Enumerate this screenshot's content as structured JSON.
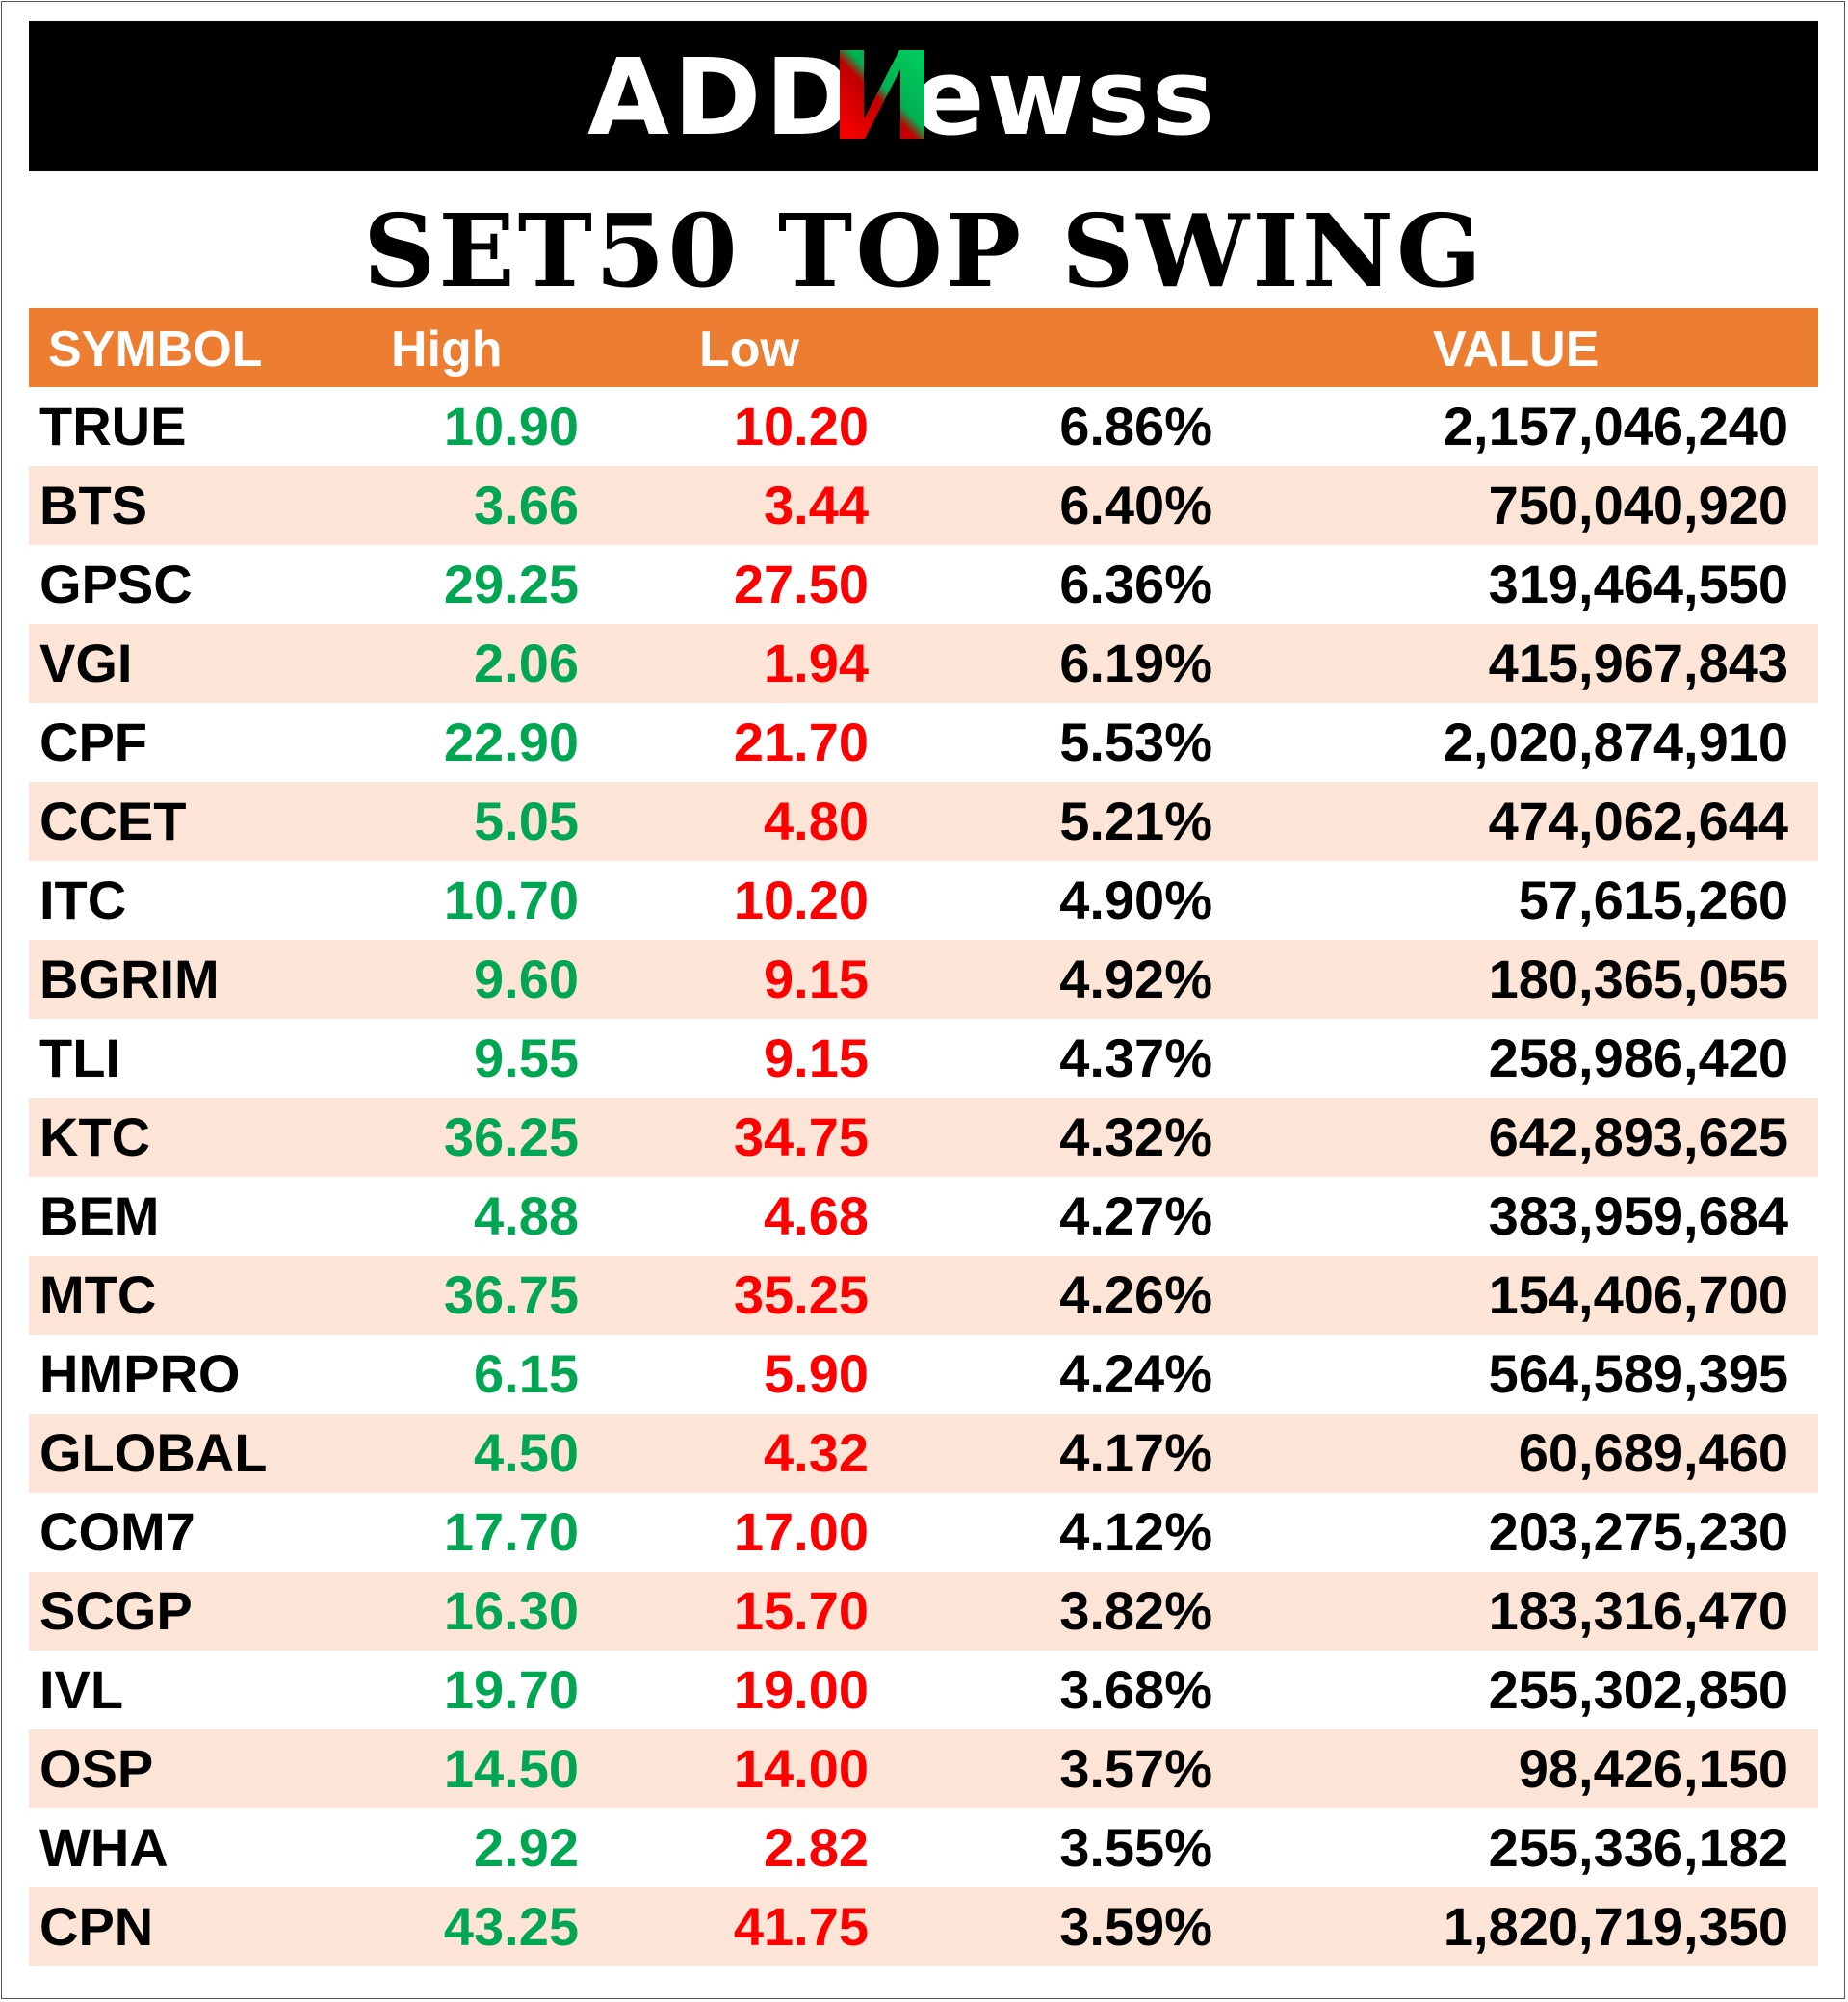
{
  "logo": {
    "text": "ADDNewss",
    "colors": {
      "background": "#000000",
      "letters": "#ffffff",
      "accent_red": "#FF0000",
      "accent_green": "#00B050"
    }
  },
  "title": "SET50 TOP SWING",
  "table": {
    "headers": {
      "symbol": "SYMBOL",
      "high": "High",
      "low": "Low",
      "pct": "",
      "value": "VALUE"
    },
    "colors": {
      "header_bg": "#ED7D31",
      "alt_row_bg": "#FCE4D6",
      "high": "#00A651",
      "low": "#FF0000"
    },
    "rows": [
      {
        "symbol": "TRUE",
        "high": "10.90",
        "low": "10.20",
        "pct": "6.86%",
        "value": "2,157,046,240"
      },
      {
        "symbol": "BTS",
        "high": "3.66",
        "low": "3.44",
        "pct": "6.40%",
        "value": "750,040,920"
      },
      {
        "symbol": "GPSC",
        "high": "29.25",
        "low": "27.50",
        "pct": "6.36%",
        "value": "319,464,550"
      },
      {
        "symbol": "VGI",
        "high": "2.06",
        "low": "1.94",
        "pct": "6.19%",
        "value": "415,967,843"
      },
      {
        "symbol": "CPF",
        "high": "22.90",
        "low": "21.70",
        "pct": "5.53%",
        "value": "2,020,874,910"
      },
      {
        "symbol": "CCET",
        "high": "5.05",
        "low": "4.80",
        "pct": "5.21%",
        "value": "474,062,644"
      },
      {
        "symbol": "ITC",
        "high": "10.70",
        "low": "10.20",
        "pct": "4.90%",
        "value": "57,615,260"
      },
      {
        "symbol": "BGRIM",
        "high": "9.60",
        "low": "9.15",
        "pct": "4.92%",
        "value": "180,365,055"
      },
      {
        "symbol": "TLI",
        "high": "9.55",
        "low": "9.15",
        "pct": "4.37%",
        "value": "258,986,420"
      },
      {
        "symbol": "KTC",
        "high": "36.25",
        "low": "34.75",
        "pct": "4.32%",
        "value": "642,893,625"
      },
      {
        "symbol": "BEM",
        "high": "4.88",
        "low": "4.68",
        "pct": "4.27%",
        "value": "383,959,684"
      },
      {
        "symbol": "MTC",
        "high": "36.75",
        "low": "35.25",
        "pct": "4.26%",
        "value": "154,406,700"
      },
      {
        "symbol": "HMPRO",
        "high": "6.15",
        "low": "5.90",
        "pct": "4.24%",
        "value": "564,589,395"
      },
      {
        "symbol": "GLOBAL",
        "high": "4.50",
        "low": "4.32",
        "pct": "4.17%",
        "value": "60,689,460"
      },
      {
        "symbol": "COM7",
        "high": "17.70",
        "low": "17.00",
        "pct": "4.12%",
        "value": "203,275,230"
      },
      {
        "symbol": "SCGP",
        "high": "16.30",
        "low": "15.70",
        "pct": "3.82%",
        "value": "183,316,470"
      },
      {
        "symbol": "IVL",
        "high": "19.70",
        "low": "19.00",
        "pct": "3.68%",
        "value": "255,302,850"
      },
      {
        "symbol": "OSP",
        "high": "14.50",
        "low": "14.00",
        "pct": "3.57%",
        "value": "98,426,150"
      },
      {
        "symbol": "WHA",
        "high": "2.92",
        "low": "2.82",
        "pct": "3.55%",
        "value": "255,336,182"
      },
      {
        "symbol": "CPN",
        "high": "43.25",
        "low": "41.75",
        "pct": "3.59%",
        "value": "1,820,719,350"
      }
    ]
  }
}
